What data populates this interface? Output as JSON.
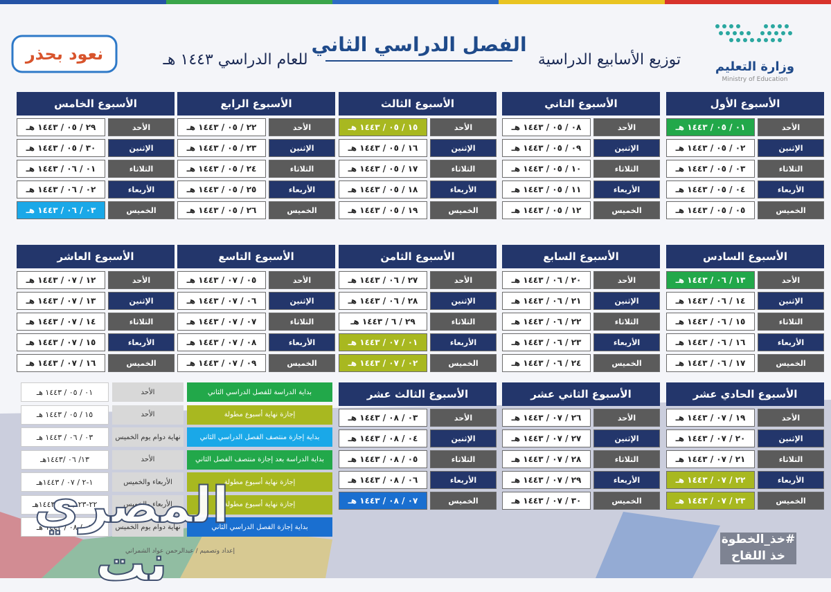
{
  "header": {
    "ministry_ar": "وزارة التعليم",
    "ministry_en": "Ministry of Education",
    "title": "الفصل الدراسي الثاني",
    "subtitle_right": "توزيع الأسابيع الدراسية",
    "subtitle_left": "للعام الدراسي ١٤٤٣ هـ",
    "campaign": "نعود بحذر"
  },
  "weeks": [
    {
      "title": "الأسبوع الأول",
      "days": [
        {
          "day": "الأحد",
          "date": "٠١ / ٠٥ / ١٤٤٣ هـ",
          "color": "#22a84a"
        },
        {
          "day": "الإثنين",
          "date": "٠٢ / ٠٥ / ١٤٤٣ هـ"
        },
        {
          "day": "الثلاثاء",
          "date": "٠٣ / ٠٥ / ١٤٤٣ هـ"
        },
        {
          "day": "الأربعاء",
          "date": "٠٤ / ٠٥ / ١٤٤٣ هـ"
        },
        {
          "day": "الخميس",
          "date": "٠٥ / ٠٥ / ١٤٤٣ هـ"
        }
      ]
    },
    {
      "title": "الأسبوع الثاني",
      "days": [
        {
          "day": "الأحد",
          "date": "٠٨ / ٠٥ / ١٤٤٣ هـ"
        },
        {
          "day": "الإثنين",
          "date": "٠٩ / ٠٥ / ١٤٤٣ هـ"
        },
        {
          "day": "الثلاثاء",
          "date": "١٠ / ٠٥ / ١٤٤٣ هـ"
        },
        {
          "day": "الأربعاء",
          "date": "١١ / ٠٥ / ١٤٤٣ هـ"
        },
        {
          "day": "الخميس",
          "date": "١٢ / ٠٥ / ١٤٤٣ هـ"
        }
      ]
    },
    {
      "title": "الأسبوع الثالث",
      "days": [
        {
          "day": "الأحد",
          "date": "١٥ / ٠٥ / ١٤٤٣ هـ",
          "color": "#a8b820"
        },
        {
          "day": "الإثنين",
          "date": "١٦ / ٠٥ / ١٤٤٣ هـ"
        },
        {
          "day": "الثلاثاء",
          "date": "١٧ / ٠٥ / ١٤٤٣ هـ"
        },
        {
          "day": "الأربعاء",
          "date": "١٨ / ٠٥ / ١٤٤٣ هـ"
        },
        {
          "day": "الخميس",
          "date": "١٩ / ٠٥ / ١٤٤٣ هـ"
        }
      ]
    },
    {
      "title": "الأسبوع الرابع",
      "days": [
        {
          "day": "الأحد",
          "date": "٢٢ / ٠٥ / ١٤٤٣ هـ"
        },
        {
          "day": "الإثنين",
          "date": "٢٣ / ٠٥ / ١٤٤٣ هـ"
        },
        {
          "day": "الثلاثاء",
          "date": "٢٤ / ٠٥ / ١٤٤٣ هـ"
        },
        {
          "day": "الأربعاء",
          "date": "٢٥ / ٠٥ / ١٤٤٣ هـ"
        },
        {
          "day": "الخميس",
          "date": "٢٦ / ٠٥ / ١٤٤٣ هـ"
        }
      ]
    },
    {
      "title": "الأسبوع الخامس",
      "days": [
        {
          "day": "الأحد",
          "date": "٢٩ / ٠٥ / ١٤٤٣ هـ"
        },
        {
          "day": "الإثنين",
          "date": "٣٠ / ٠٥ / ١٤٤٣ هـ"
        },
        {
          "day": "الثلاثاء",
          "date": "٠١ / ٠٦ / ١٤٤٣ هـ"
        },
        {
          "day": "الأربعاء",
          "date": "٠٢ / ٠٦ / ١٤٤٣ هـ"
        },
        {
          "day": "الخميس",
          "date": "٠٣ / ٠٦ / ١٤٤٣ هـ",
          "color": "#1aa8e8"
        }
      ]
    },
    {
      "title": "الأسبوع السادس",
      "days": [
        {
          "day": "الأحد",
          "date": "١٣ / ٠٦ / ١٤٤٣ هـ",
          "color": "#22a84a"
        },
        {
          "day": "الإثنين",
          "date": "١٤ / ٠٦ / ١٤٤٣ هـ"
        },
        {
          "day": "الثلاثاء",
          "date": "١٥ / ٠٦ / ١٤٤٣ هـ"
        },
        {
          "day": "الأربعاء",
          "date": "١٦ / ٠٦ / ١٤٤٣ هـ"
        },
        {
          "day": "الخميس",
          "date": "١٧ / ٠٦ / ١٤٤٣ هـ"
        }
      ]
    },
    {
      "title": "الأسبوع السابع",
      "days": [
        {
          "day": "الأحد",
          "date": "٢٠ / ٠٦ / ١٤٤٣ هـ"
        },
        {
          "day": "الإثنين",
          "date": "٢١ / ٠٦ / ١٤٤٣ هـ"
        },
        {
          "day": "الثلاثاء",
          "date": "٢٢ / ٠٦ / ١٤٤٣ هـ"
        },
        {
          "day": "الأربعاء",
          "date": "٢٣ / ٠٦ / ١٤٤٣ هـ"
        },
        {
          "day": "الخميس",
          "date": "٢٤ / ٠٦ / ١٤٤٣ هـ"
        }
      ]
    },
    {
      "title": "الأسبوع الثامن",
      "days": [
        {
          "day": "الأحد",
          "date": "٢٧ / ٠٦ / ١٤٤٣ هـ"
        },
        {
          "day": "الإثنين",
          "date": "٢٨ / ٠٦ / ١٤٤٣ هـ"
        },
        {
          "day": "الثلاثاء",
          "date": "٢٩ / ٦ / ١٤٤٣ هـ"
        },
        {
          "day": "الأربعاء",
          "date": "٠١ / ٠٧ / ١٤٤٣ هـ",
          "color": "#a8b820"
        },
        {
          "day": "الخميس",
          "date": "٠٢ / ٠٧ / ١٤٤٣ هـ",
          "color": "#a8b820"
        }
      ]
    },
    {
      "title": "الأسبوع التاسع",
      "days": [
        {
          "day": "الأحد",
          "date": "٠٥ / ٠٧ / ١٤٤٣ هـ"
        },
        {
          "day": "الإثنين",
          "date": "٠٦ / ٠٧ / ١٤٤٣ هـ"
        },
        {
          "day": "الثلاثاء",
          "date": "٠٧ / ٠٧ / ١٤٤٣ هـ"
        },
        {
          "day": "الأربعاء",
          "date": "٠٨ / ٠٧ / ١٤٤٣ هـ"
        },
        {
          "day": "الخميس",
          "date": "٠٩ / ٠٧ / ١٤٤٣ هـ"
        }
      ]
    },
    {
      "title": "الأسبوع العاشر",
      "days": [
        {
          "day": "الأحد",
          "date": "١٢ / ٠٧ / ١٤٤٣ هـ"
        },
        {
          "day": "الإثنين",
          "date": "١٣ / ٠٧ / ١٤٤٣ هـ"
        },
        {
          "day": "الثلاثاء",
          "date": "١٤ / ٠٧ / ١٤٤٣ هـ"
        },
        {
          "day": "الأربعاء",
          "date": "١٥ / ٠٧ / ١٤٤٣ هـ"
        },
        {
          "day": "الخميس",
          "date": "١٦ / ٠٧ / ١٤٤٣ هـ"
        }
      ]
    },
    {
      "title": "الأسبوع الحادي عشر",
      "days": [
        {
          "day": "الأحد",
          "date": "١٩ / ٠٧ / ١٤٤٣ هـ"
        },
        {
          "day": "الإثنين",
          "date": "٢٠ / ٠٧ / ١٤٤٣ هـ"
        },
        {
          "day": "الثلاثاء",
          "date": "٢١ / ٠٧ / ١٤٤٣ هـ"
        },
        {
          "day": "الأربعاء",
          "date": "٢٢ / ٠٧ / ١٤٤٣ هـ",
          "color": "#a8b820"
        },
        {
          "day": "الخميس",
          "date": "٢٣ / ٠٧ / ١٤٤٣ هـ",
          "color": "#a8b820"
        }
      ]
    },
    {
      "title": "الأسبوع الثاني عشر",
      "days": [
        {
          "day": "الأحد",
          "date": "٢٦ / ٠٧ / ١٤٤٣ هـ"
        },
        {
          "day": "الإثنين",
          "date": "٢٧ / ٠٧ / ١٤٤٣ هـ"
        },
        {
          "day": "الثلاثاء",
          "date": "٢٨ / ٠٧ / ١٤٤٣ هـ"
        },
        {
          "day": "الأربعاء",
          "date": "٢٩ / ٠٧ / ١٤٤٣ هـ"
        },
        {
          "day": "الخميس",
          "date": "٣٠ / ٠٧ / ١٤٤٣ هـ"
        }
      ]
    },
    {
      "title": "الأسبوع الثالث عشر",
      "days": [
        {
          "day": "الأحد",
          "date": "٠٣ / ٠٨ / ١٤٤٣ هـ"
        },
        {
          "day": "الإثنين",
          "date": "٠٤ / ٠٨ / ١٤٤٣ هـ"
        },
        {
          "day": "الثلاثاء",
          "date": "٠٥ / ٠٨ / ١٤٤٣ هـ"
        },
        {
          "day": "الأربعاء",
          "date": "٠٦ / ٠٨ / ١٤٤٣ هـ"
        },
        {
          "day": "الخميس",
          "date": "٠٧ / ٠٨ / ١٤٤٣ هـ",
          "color": "#1a6fd0"
        }
      ]
    }
  ],
  "legend": [
    {
      "event": "بداية الدراسة للفصل الدراسي الثاني",
      "color": "#22a84a",
      "day": "الأحد",
      "date": "٠١ / ٠٥ / ١٤٤٣ هـ"
    },
    {
      "event": "إجازة نهاية أسبوع مطولة",
      "color": "#a8b820",
      "day": "الأحد",
      "date": "١٥ / ٠٥ / ١٤٤٣ هـ"
    },
    {
      "event": "بداية إجازة منتصف الفصل الدراسي الثاني",
      "color": "#1aa8e8",
      "day": "نهاية دوام يوم الخميس",
      "date": "٠٣ / ٠٦ / ١٤٤٣ هـ"
    },
    {
      "event": "بداية الدراسة بعد إجازة منتصف الفصل الثاني",
      "color": "#22a84a",
      "day": "الأحد",
      "date": "١٣/ ٠٦ /١٤٤٣هـ"
    },
    {
      "event": "إجازة نهاية أسبوع مطولة",
      "color": "#a8b820",
      "day": "الأربعاء والخميس",
      "date": "١-٢ / ٠٧ / ١٤٤٣هـ"
    },
    {
      "event": "إجازة نهاية أسبوع مطولة",
      "color": "#a8b820",
      "day": "الأربعاء والخميس",
      "date": "٢٢-٢٣ / ٠٧ / ١٤٤٣هـ"
    },
    {
      "event": "بداية إجازة الفصل الدراسي الثاني",
      "color": "#1a6fd0",
      "day": "نهاية دوام يوم الخميس",
      "date": "٠٧ / ٠٨ / ١٤٤٣ هـ"
    }
  ],
  "credit": "إعداد وتصميم / عبدالرحمن عواد الشمراني",
  "watermark": "المصري نت",
  "hashtag": "#خذ_الخطوة",
  "hashtag_sub": "خذ اللقاح"
}
